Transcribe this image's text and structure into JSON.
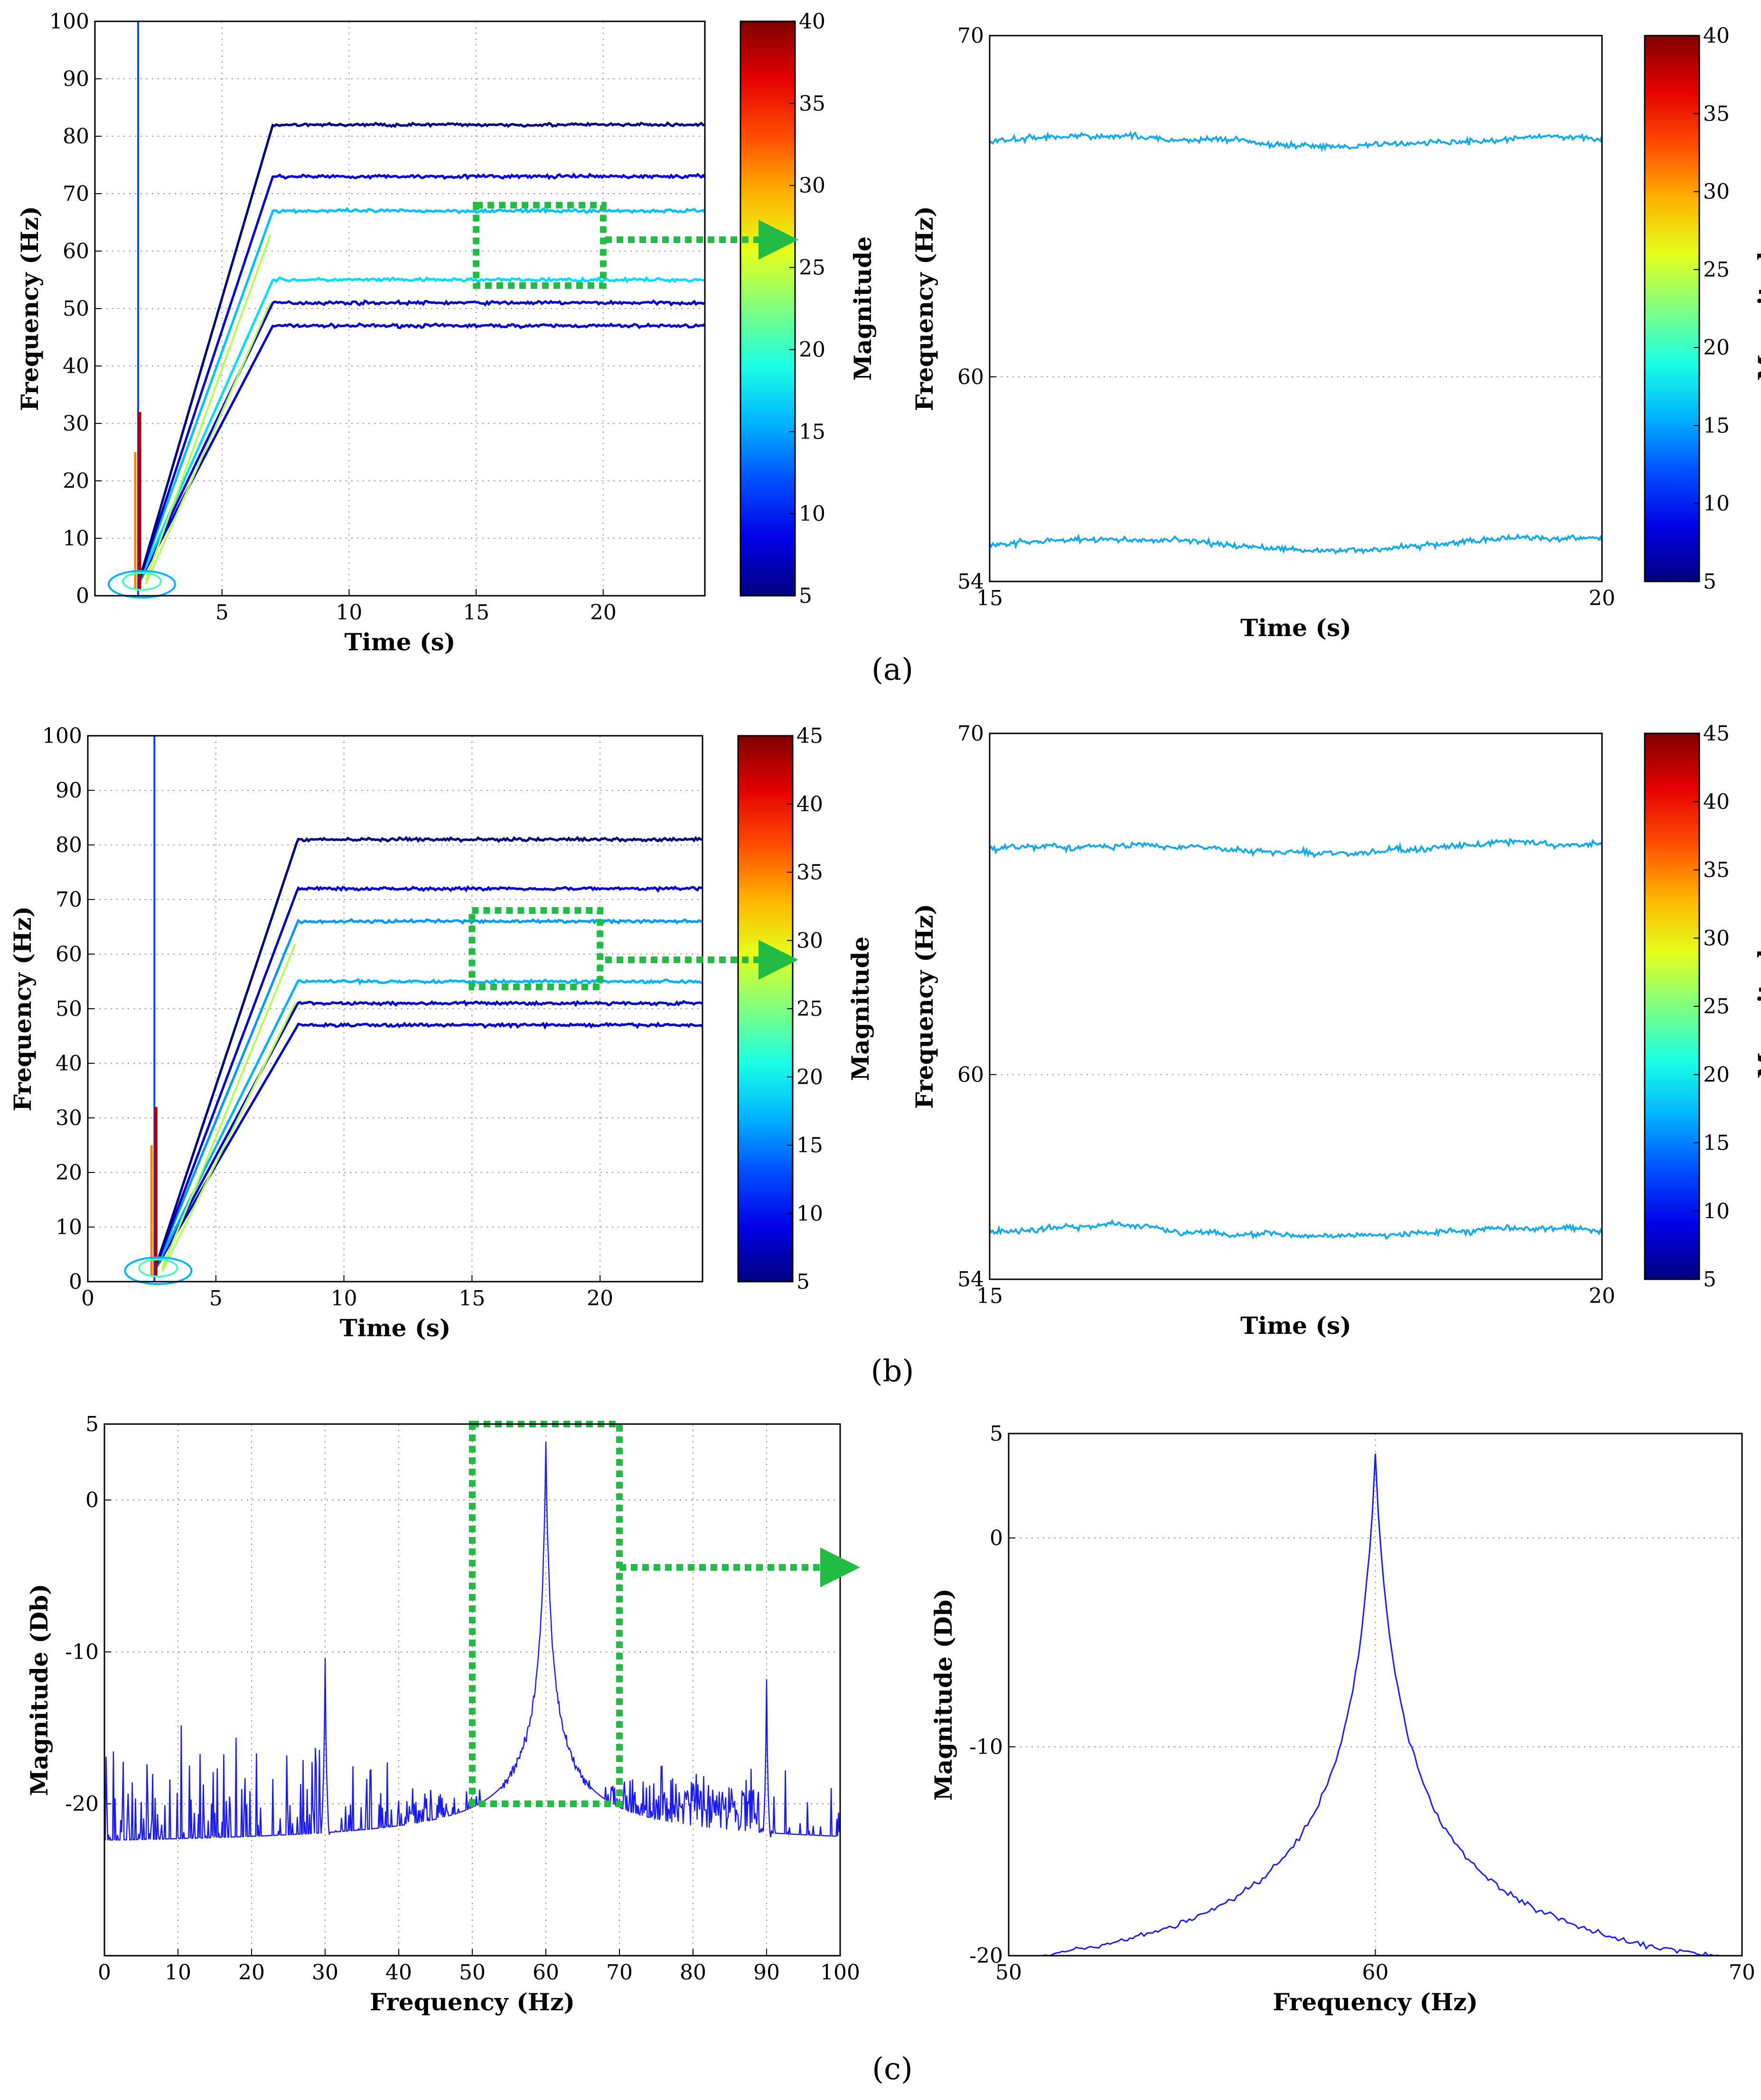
{
  "panel_labels": {
    "a": "(a)",
    "b": "(b)",
    "c": "(c)"
  },
  "colors": {
    "highlight": "#22bb44",
    "signal": "#1a1aff",
    "zoom_line": "#16a9e8"
  },
  "chart_data": [
    {
      "id": "a-left",
      "type": "contour",
      "xlabel": "Time (s)",
      "ylabel": "Frequency (Hz)",
      "colorbar_label": "Magnitude",
      "xlim": [
        0,
        24
      ],
      "ylim": [
        0,
        100
      ],
      "xticks": [
        "5",
        "10",
        "15",
        "20"
      ],
      "yticks": [
        "0",
        "10",
        "20",
        "30",
        "40",
        "50",
        "60",
        "70",
        "80",
        "90",
        "100"
      ],
      "colorbar_ticks": [
        "5",
        "10",
        "15",
        "20",
        "25",
        "30",
        "35",
        "40"
      ],
      "colorbar_range": [
        5,
        40
      ],
      "ramp_start_s": 1.7,
      "ramp_end_s": 7,
      "end_s": 24,
      "harmonic_levels_hz": [
        47,
        51,
        55,
        67,
        73,
        82
      ],
      "harmonic_magnitudes": [
        8,
        8,
        17,
        16,
        8,
        5
      ],
      "startup_spike_s": 1.7,
      "highlight_box": {
        "t": [
          15,
          20
        ],
        "f": [
          54,
          68
        ]
      }
    },
    {
      "id": "a-right",
      "type": "line",
      "xlabel": "Time (s)",
      "ylabel": "Frequency (Hz)",
      "colorbar_label": "Magnitude",
      "xlim": [
        15,
        20
      ],
      "ylim": [
        54,
        70
      ],
      "xticks": [
        "15",
        "20"
      ],
      "yticks": [
        "54",
        "60",
        "70"
      ],
      "colorbar_ticks": [
        "5",
        "10",
        "15",
        "20",
        "25",
        "30",
        "35",
        "40"
      ],
      "colorbar_range": [
        5,
        40
      ],
      "series": [
        {
          "name": "upper",
          "level": 66.9
        },
        {
          "name": "lower",
          "level": 55.1
        }
      ]
    },
    {
      "id": "b-left",
      "type": "contour",
      "xlabel": "Time (s)",
      "ylabel": "Frequency (Hz)",
      "colorbar_label": "Magnitude",
      "xlim": [
        0,
        24
      ],
      "ylim": [
        0,
        100
      ],
      "xticks": [
        "0",
        "5",
        "10",
        "15",
        "20"
      ],
      "yticks": [
        "0",
        "10",
        "20",
        "30",
        "40",
        "50",
        "60",
        "70",
        "80",
        "90",
        "100"
      ],
      "colorbar_ticks": [
        "5",
        "10",
        "15",
        "20",
        "25",
        "30",
        "35",
        "40",
        "45"
      ],
      "colorbar_range": [
        5,
        45
      ],
      "ramp_start_s": 2.6,
      "ramp_end_s": 8.2,
      "end_s": 24,
      "harmonic_levels_hz": [
        47,
        51,
        55,
        66,
        72,
        81
      ],
      "harmonic_magnitudes": [
        8,
        8,
        17,
        16,
        8,
        5
      ],
      "startup_spike_s": 2.6,
      "highlight_box": {
        "t": [
          15,
          20
        ],
        "f": [
          54,
          68
        ]
      }
    },
    {
      "id": "b-right",
      "type": "line",
      "xlabel": "Time (s)",
      "ylabel": "Frequency (Hz)",
      "colorbar_label": "Magnitude",
      "xlim": [
        15,
        20
      ],
      "ylim": [
        54,
        70
      ],
      "xticks": [
        "15",
        "20"
      ],
      "yticks": [
        "54",
        "60",
        "70"
      ],
      "colorbar_ticks": [
        "5",
        "10",
        "15",
        "20",
        "25",
        "30",
        "35",
        "40",
        "45"
      ],
      "colorbar_range": [
        5,
        45
      ],
      "series": [
        {
          "name": "upper",
          "level": 66.6
        },
        {
          "name": "lower",
          "level": 55.4
        }
      ]
    },
    {
      "id": "c-left",
      "type": "line",
      "xlabel": "Frequency (Hz)",
      "ylabel": "Magnitude (Db)",
      "xlim": [
        0,
        100
      ],
      "ylim": [
        -30,
        5
      ],
      "xticks": [
        "0",
        "10",
        "20",
        "30",
        "40",
        "50",
        "60",
        "70",
        "80",
        "90",
        "100"
      ],
      "yticks": [
        "5",
        "0",
        "-10",
        "-20"
      ],
      "peaks": [
        {
          "f": 30,
          "db": -10.5
        },
        {
          "f": 60,
          "db": 4
        },
        {
          "f": 90,
          "db": -12
        }
      ],
      "highlight_box": {
        "f": [
          50,
          70
        ],
        "db": [
          -20,
          5
        ]
      }
    },
    {
      "id": "c-right",
      "type": "line",
      "xlabel": "Frequency (Hz)",
      "ylabel": "Magnitude (Db)",
      "xlim": [
        50,
        70
      ],
      "ylim": [
        -20,
        5
      ],
      "xticks": [
        "50",
        "60",
        "70"
      ],
      "yticks": [
        "5",
        "0",
        "-10",
        "-20"
      ],
      "peaks": [
        {
          "f": 60,
          "db": 4
        }
      ]
    }
  ]
}
